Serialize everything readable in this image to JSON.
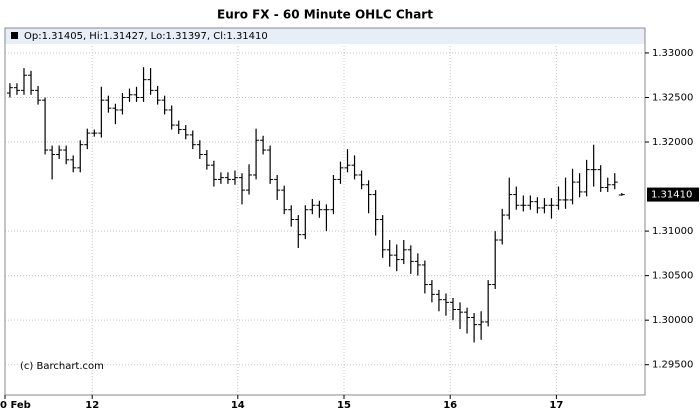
{
  "chart_data": {
    "type": "ohlc",
    "title": "Euro FX - 60 Minute OHLC Chart",
    "legend_text": "Op:1.31405, Hi:1.31427, Lo:1.31397, Cl:1.31410",
    "watermark": "(c) Barchart.com",
    "color": "#000000",
    "grid": true,
    "last_price": {
      "value": 1.3141,
      "label": "1.31410"
    },
    "open": [
      1.3255,
      1.3261,
      1.3258,
      1.3275,
      1.3258,
      1.3247,
      1.3191,
      1.3186,
      1.3191,
      1.318,
      1.3171,
      1.3197,
      1.321,
      1.321,
      1.3247,
      1.3238,
      1.3236,
      1.325,
      1.3253,
      1.325,
      1.327,
      1.3258,
      1.3247,
      1.3236,
      1.3219,
      1.3214,
      1.3208,
      1.3197,
      1.3186,
      1.3174,
      1.3158,
      1.316,
      1.3158,
      1.316,
      1.3146,
      1.3163,
      1.3202,
      1.3191,
      1.3158,
      1.3146,
      1.3124,
      1.3113,
      1.3096,
      1.3124,
      1.3129,
      1.3124,
      1.3124,
      1.3158,
      1.3171,
      1.3174,
      1.3163,
      1.3152,
      1.3141,
      1.3113,
      1.3079,
      1.3073,
      1.3068,
      1.3079,
      1.3066,
      1.3062,
      1.304,
      1.3029,
      1.3023,
      1.302,
      1.3012,
      1.3009,
      1.3003,
      1.2995,
      1.2998,
      1.304,
      1.309,
      1.3118,
      1.3141,
      1.3129,
      1.3129,
      1.3133,
      1.3126,
      1.3129,
      1.3129,
      1.3135,
      1.3135,
      1.3155,
      1.3144,
      1.3169,
      1.3169,
      1.3149,
      1.3152,
      1.31405
    ],
    "high": [
      1.3266,
      1.3266,
      1.3283,
      1.328,
      1.3263,
      1.325,
      1.3196,
      1.3196,
      1.3196,
      1.3185,
      1.3202,
      1.3215,
      1.3214,
      1.3262,
      1.3252,
      1.3243,
      1.3255,
      1.326,
      1.3262,
      1.3284,
      1.3283,
      1.3263,
      1.3252,
      1.3241,
      1.3224,
      1.3219,
      1.3213,
      1.3202,
      1.3191,
      1.3179,
      1.3166,
      1.3166,
      1.3168,
      1.3165,
      1.3175,
      1.3215,
      1.3207,
      1.3196,
      1.3163,
      1.3151,
      1.3129,
      1.3118,
      1.3129,
      1.3136,
      1.3134,
      1.313,
      1.3163,
      1.3178,
      1.3192,
      1.3185,
      1.3168,
      1.3157,
      1.3146,
      1.3118,
      1.309,
      1.3085,
      1.309,
      1.3084,
      1.3075,
      1.3067,
      1.3045,
      1.3034,
      1.303,
      1.3025,
      1.302,
      1.3014,
      1.3008,
      1.301,
      1.3045,
      1.31,
      1.3125,
      1.316,
      1.315,
      1.314,
      1.314,
      1.3138,
      1.3137,
      1.3137,
      1.315,
      1.316,
      1.317,
      1.3165,
      1.318,
      1.3197,
      1.3174,
      1.316,
      1.3165,
      1.31427
    ],
    "low": [
      1.325,
      1.3253,
      1.3253,
      1.3253,
      1.3242,
      1.3186,
      1.3158,
      1.3181,
      1.3175,
      1.3166,
      1.3166,
      1.3192,
      1.3206,
      1.3205,
      1.3233,
      1.322,
      1.3231,
      1.3245,
      1.3245,
      1.3245,
      1.3253,
      1.3242,
      1.3231,
      1.3214,
      1.3209,
      1.3203,
      1.3192,
      1.3181,
      1.3169,
      1.315,
      1.3153,
      1.3153,
      1.3152,
      1.313,
      1.3141,
      1.3158,
      1.3186,
      1.3153,
      1.3135,
      1.3119,
      1.3105,
      1.3081,
      1.3091,
      1.3119,
      1.3115,
      1.31,
      1.3119,
      1.3153,
      1.3166,
      1.3158,
      1.3147,
      1.312,
      1.3095,
      1.307,
      1.306,
      1.3055,
      1.3063,
      1.3052,
      1.305,
      1.303,
      1.302,
      1.301,
      1.3005,
      1.3,
      1.299,
      1.2985,
      1.2975,
      1.2978,
      1.2993,
      1.3035,
      1.3085,
      1.3113,
      1.3124,
      1.3122,
      1.3124,
      1.312,
      1.312,
      1.3114,
      1.3124,
      1.3125,
      1.313,
      1.3138,
      1.3139,
      1.315,
      1.3144,
      1.3144,
      1.3147,
      1.31397
    ],
    "close": [
      1.3261,
      1.3258,
      1.3275,
      1.3258,
      1.3247,
      1.3191,
      1.3186,
      1.3191,
      1.318,
      1.3171,
      1.3197,
      1.321,
      1.321,
      1.3247,
      1.3238,
      1.3236,
      1.325,
      1.3253,
      1.325,
      1.327,
      1.3258,
      1.3247,
      1.3236,
      1.3219,
      1.3214,
      1.3208,
      1.3197,
      1.3186,
      1.3174,
      1.3158,
      1.316,
      1.3158,
      1.316,
      1.3146,
      1.3163,
      1.3202,
      1.3191,
      1.3158,
      1.3146,
      1.3124,
      1.3113,
      1.3096,
      1.3124,
      1.3129,
      1.3124,
      1.3124,
      1.3158,
      1.3171,
      1.3174,
      1.3163,
      1.3152,
      1.3141,
      1.3113,
      1.3079,
      1.3073,
      1.3068,
      1.3079,
      1.3066,
      1.3062,
      1.304,
      1.3029,
      1.3023,
      1.302,
      1.3012,
      1.3009,
      1.3003,
      1.2995,
      1.2998,
      1.304,
      1.309,
      1.3118,
      1.3141,
      1.3129,
      1.3129,
      1.3133,
      1.3126,
      1.3129,
      1.3129,
      1.3135,
      1.3135,
      1.3155,
      1.3144,
      1.3169,
      1.3169,
      1.3149,
      1.3152,
      1.3155,
      1.3141
    ],
    "xlim": [
      -0.7,
      90.3
    ],
    "xticks": [
      {
        "value": -0.7,
        "label": "0 Feb"
      },
      {
        "value": 11.7,
        "label": "12"
      },
      {
        "value": 32.4,
        "label": "14"
      },
      {
        "value": 47.5,
        "label": "15"
      },
      {
        "value": 62.6,
        "label": "16"
      },
      {
        "value": 77.7,
        "label": "17"
      }
    ],
    "ylim": [
      1.2916,
      1.3328
    ],
    "yticks": [
      {
        "value": 1.33,
        "label": "1.33000"
      },
      {
        "value": 1.325,
        "label": "1.32500"
      },
      {
        "value": 1.32,
        "label": "1.32000"
      },
      {
        "value": 1.31,
        "label": "1.31000"
      },
      {
        "value": 1.305,
        "label": "1.30500"
      },
      {
        "value": 1.3,
        "label": "1.30000"
      },
      {
        "value": 1.295,
        "label": "1.29500"
      }
    ]
  }
}
